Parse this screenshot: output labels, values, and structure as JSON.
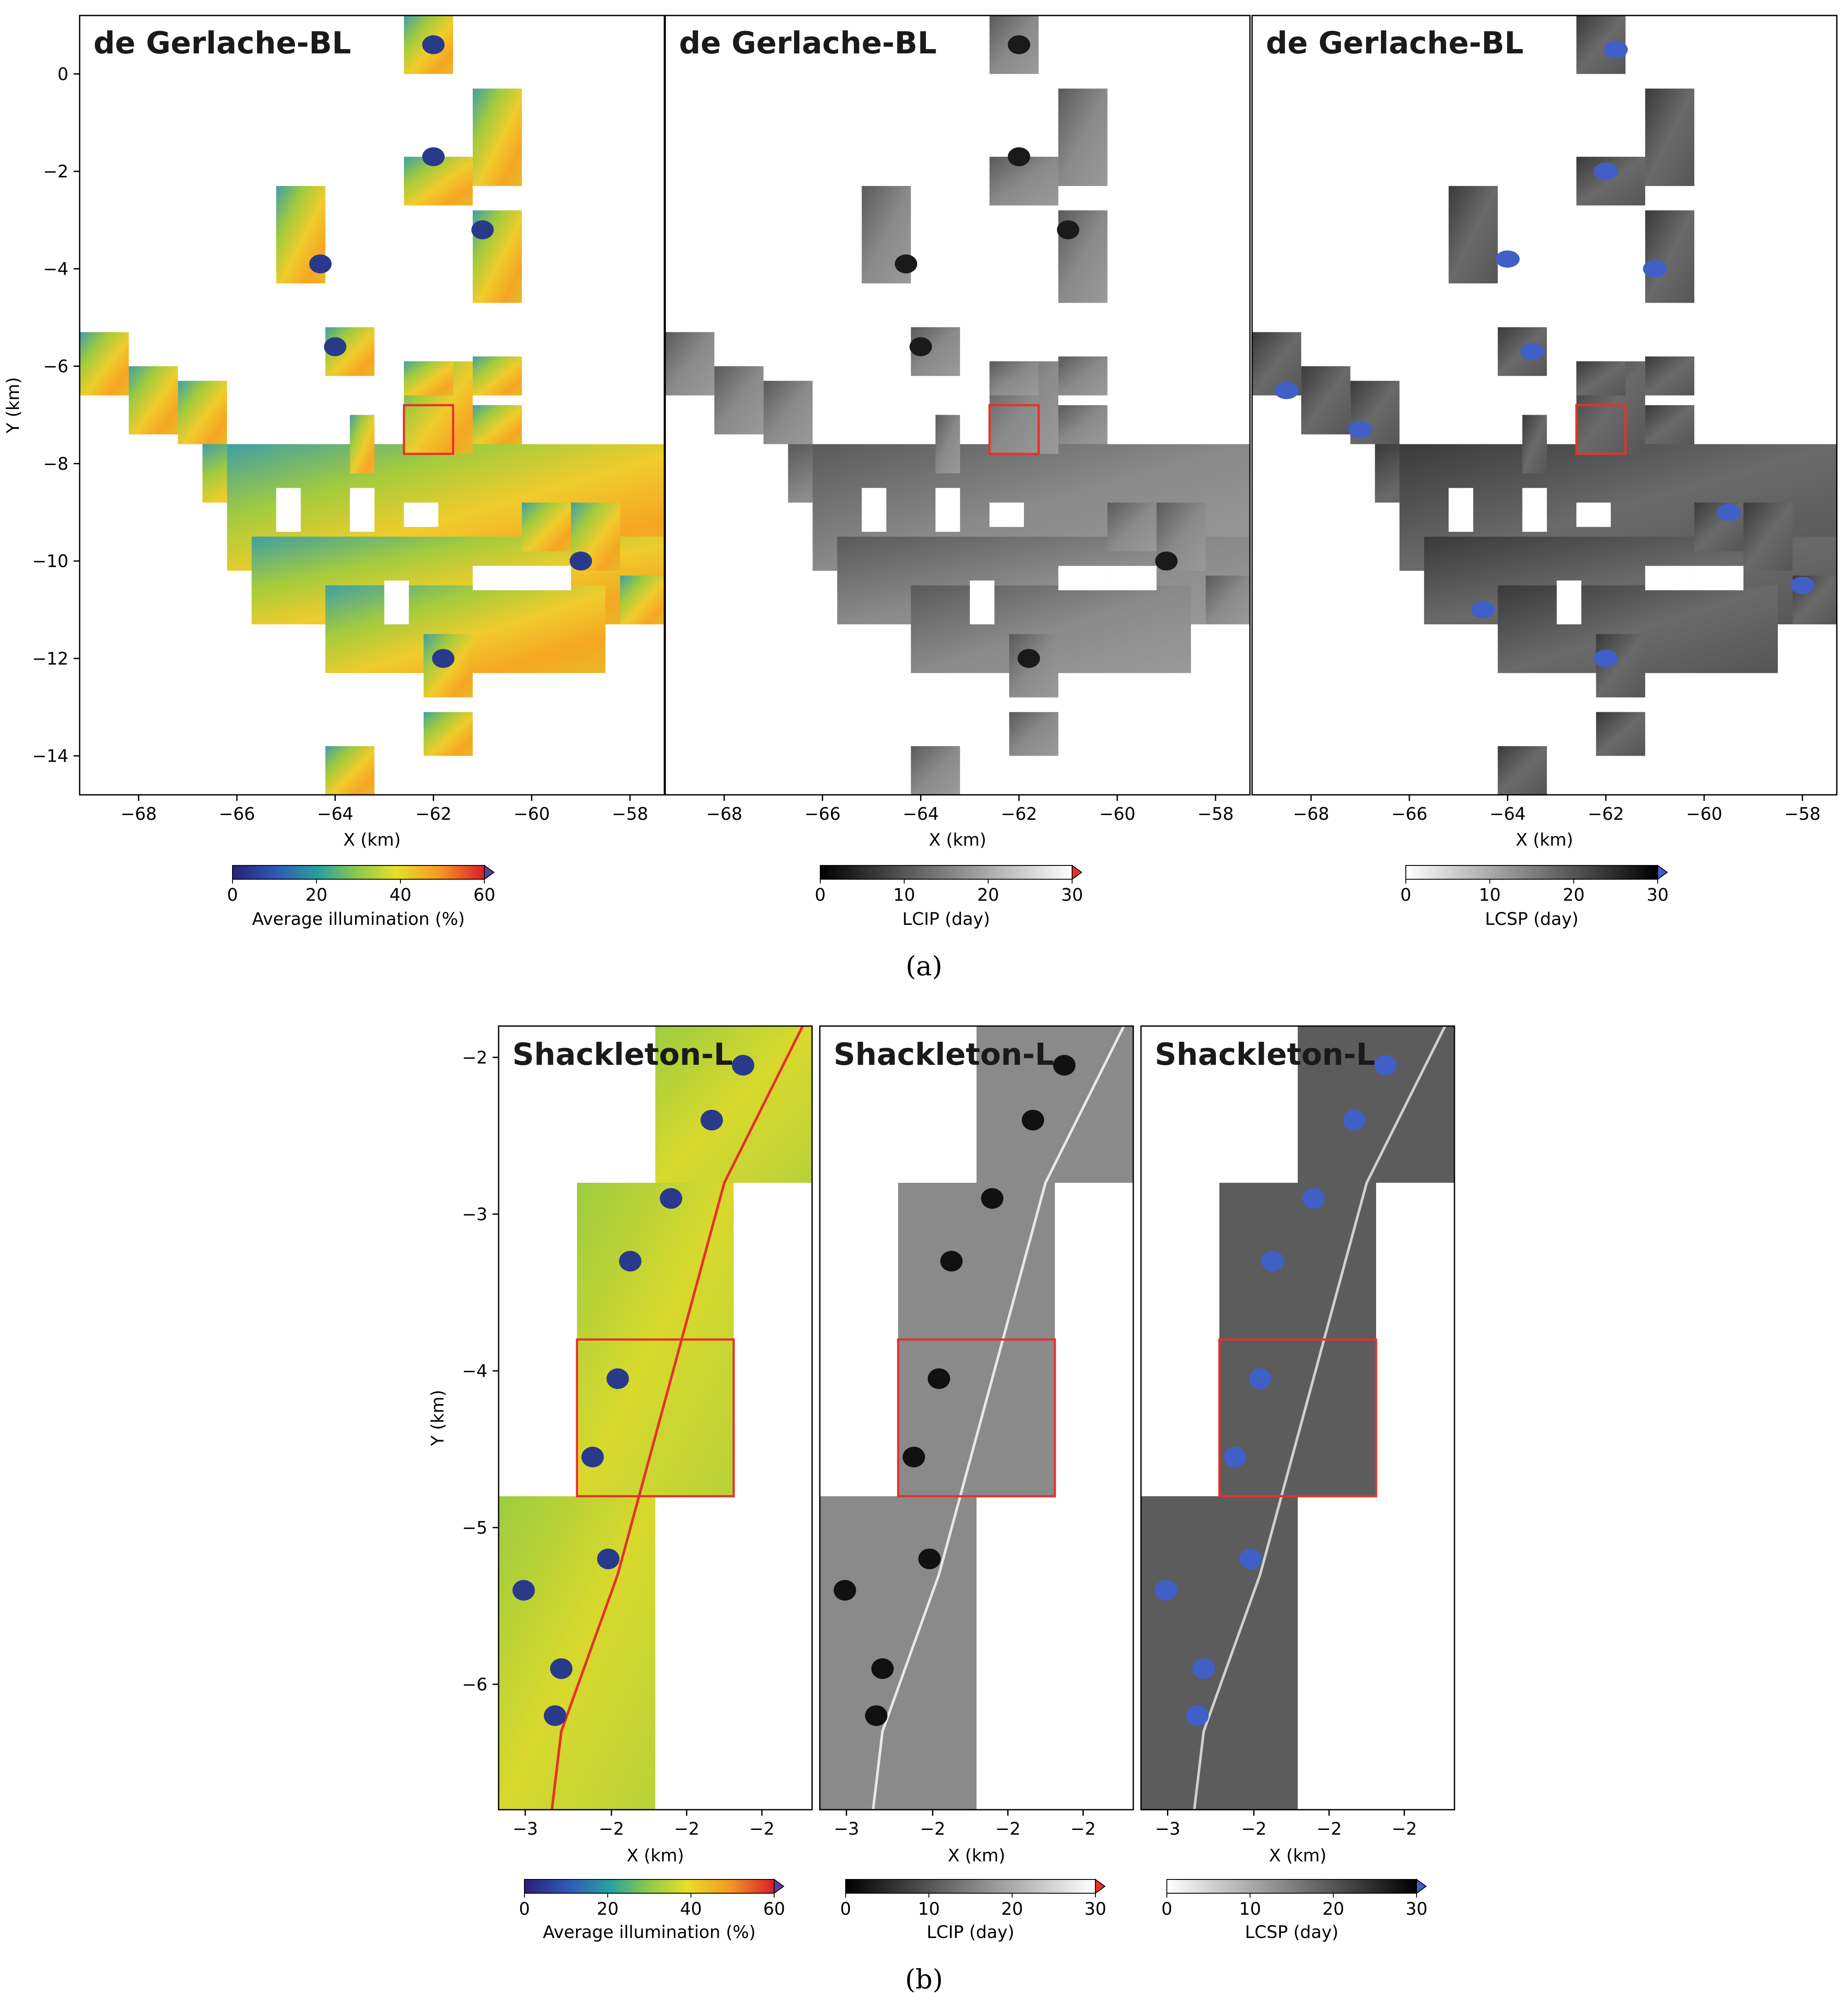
{
  "figure": {
    "subfigures": [
      {
        "caption": "(a)",
        "panels": [
          {
            "title": "de Gerlache-BL",
            "xlabel": "X (km)",
            "ylabel": "Y (km)",
            "xlim": [
              -69.2,
              -57.3
            ],
            "ylim": [
              -14.8,
              1.2
            ],
            "xticks": [
              -68,
              -66,
              -64,
              -62,
              -60,
              -58
            ],
            "yticks": [
              0,
              -2,
              -4,
              -6,
              -8,
              -10,
              -12,
              -14
            ],
            "show_yticks": true,
            "colormap": "viridis-to-red",
            "nodata_overlay": false,
            "highlight_box": {
              "x": [
                -62.6,
                -61.6
              ],
              "y": [
                -7.8,
                -6.8
              ]
            }
          },
          {
            "title": "de Gerlache-BL",
            "xlabel": "X (km)",
            "xlim": [
              -69.2,
              -57.3
            ],
            "ylim": [
              -14.8,
              1.2
            ],
            "xticks": [
              -68,
              -66,
              -64,
              -62,
              -60,
              -58
            ],
            "show_yticks": false,
            "colormap": "gray",
            "nodata_overlay": false,
            "highlight_box": {
              "x": [
                -62.6,
                -61.6
              ],
              "y": [
                -7.8,
                -6.8
              ]
            }
          },
          {
            "title": "de Gerlache-BL",
            "xlabel": "X (km)",
            "xlim": [
              -69.2,
              -57.3
            ],
            "ylim": [
              -14.8,
              1.2
            ],
            "xticks": [
              -68,
              -66,
              -64,
              -62,
              -60,
              -58
            ],
            "show_yticks": false,
            "colormap": "gray_r",
            "nodata_overlay": true,
            "highlight_box": {
              "x": [
                -62.6,
                -61.6
              ],
              "y": [
                -7.8,
                -6.8
              ]
            }
          }
        ],
        "colorbars": [
          {
            "label": "Average illumination (%)",
            "ticks": [
              0,
              20,
              40,
              60
            ],
            "range": [
              0,
              60
            ],
            "colormap": "viridis-to-red",
            "extend_color": "#5b3fa0"
          },
          {
            "label": "LCIP (day)",
            "ticks": [
              0,
              10,
              20,
              30
            ],
            "range": [
              0,
              30
            ],
            "colormap": "gray",
            "extend_color": "#e8302a"
          },
          {
            "label": "LCSP (day)",
            "ticks": [
              0,
              10,
              20,
              30
            ],
            "range": [
              0,
              30
            ],
            "colormap": "gray_r",
            "extend_color": "#4060c8"
          }
        ]
      },
      {
        "caption": "(b)",
        "panels": [
          {
            "title": "Shackleton-L",
            "xlabel": "X (km)",
            "ylabel": "Y (km)",
            "xticks": [
              "−3",
              "−2",
              "−2",
              "−2"
            ],
            "yticks": [
              -2,
              -3,
              -4,
              -5,
              -6
            ],
            "show_yticks": true,
            "colormap": "viridis-to-red",
            "nodata_overlay": false
          },
          {
            "title": "Shackleton-L",
            "xlabel": "X (km)",
            "xticks": [
              "−3",
              "−2",
              "−2",
              "−2"
            ],
            "show_yticks": false,
            "colormap": "gray",
            "nodata_overlay": false
          },
          {
            "title": "Shackleton-L",
            "xlabel": "X (km)",
            "xticks": [
              "−3",
              "−2",
              "−2",
              "−2"
            ],
            "show_yticks": false,
            "colormap": "gray_r",
            "nodata_overlay": true
          }
        ],
        "colorbars": [
          {
            "label": "Average illumination (%)",
            "ticks": [
              0,
              20,
              40,
              60
            ],
            "range": [
              0,
              60
            ],
            "colormap": "viridis-to-red",
            "extend_color": "#5b3fa0"
          },
          {
            "label": "LCIP (day)",
            "ticks": [
              0,
              10,
              20,
              30
            ],
            "range": [
              0,
              30
            ],
            "colormap": "gray",
            "extend_color": "#e8302a"
          },
          {
            "label": "LCSP (day)",
            "ticks": [
              0,
              10,
              20,
              30
            ],
            "range": [
              0,
              30
            ],
            "colormap": "gray_r",
            "extend_color": "#4060c8"
          }
        ]
      }
    ]
  },
  "chart_data": [
    {
      "type": "heatmap",
      "title": "de Gerlache-BL",
      "xlabel": "X (km)",
      "ylabel": "Y (km)",
      "xlim": [
        -69.2,
        -57.3
      ],
      "ylim": [
        -14.8,
        1.2
      ],
      "colorbar_label": "Average illumination (%)",
      "colorbar_range": [
        0,
        60
      ]
    },
    {
      "type": "heatmap",
      "title": "de Gerlache-BL",
      "xlabel": "X (km)",
      "xlim": [
        -69.2,
        -57.3
      ],
      "ylim": [
        -14.8,
        1.2
      ],
      "colorbar_label": "LCIP (day)",
      "colorbar_range": [
        0,
        30
      ]
    },
    {
      "type": "heatmap",
      "title": "de Gerlache-BL",
      "xlabel": "X (km)",
      "xlim": [
        -69.2,
        -57.3
      ],
      "ylim": [
        -14.8,
        1.2
      ],
      "colorbar_label": "LCSP (day)",
      "colorbar_range": [
        0,
        30
      ]
    },
    {
      "type": "heatmap",
      "title": "Shackleton-L",
      "xlabel": "X (km)",
      "ylabel": "Y (km)",
      "colorbar_label": "Average illumination (%)",
      "colorbar_range": [
        0,
        60
      ]
    },
    {
      "type": "heatmap",
      "title": "Shackleton-L",
      "xlabel": "X (km)",
      "colorbar_label": "LCIP (day)",
      "colorbar_range": [
        0,
        30
      ]
    },
    {
      "type": "heatmap",
      "title": "Shackleton-L",
      "xlabel": "X (km)",
      "colorbar_label": "LCSP (day)",
      "colorbar_range": [
        0,
        30
      ]
    }
  ]
}
